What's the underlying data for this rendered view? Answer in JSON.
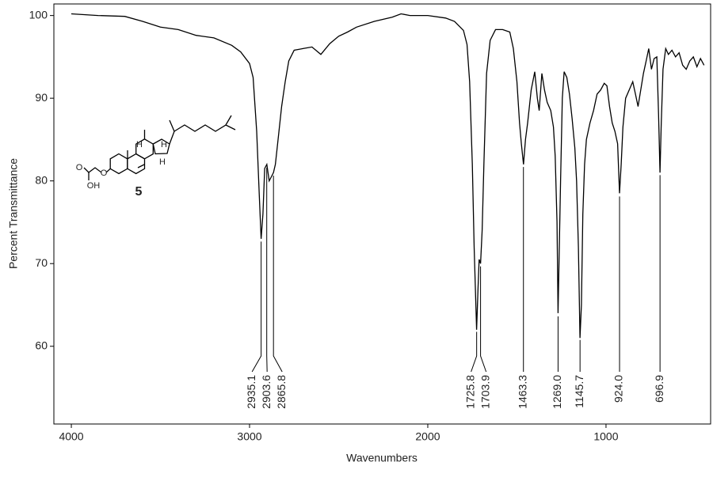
{
  "chart_data": {
    "type": "line",
    "x_label": "Wavenumbers",
    "y_label": "Percent Transmittance",
    "color": "#000000",
    "xlim": [
      4098,
      413
    ],
    "ylim": [
      50.6,
      101.4
    ],
    "xticks": [
      4000,
      3000,
      2000,
      1000
    ],
    "yticks": [
      60,
      70,
      80,
      90,
      100
    ],
    "x": [
      4000,
      3850,
      3700,
      3600,
      3500,
      3400,
      3300,
      3200,
      3100,
      3050,
      3000,
      2980,
      2960,
      2945,
      2935,
      2925,
      2915,
      2903,
      2890,
      2878,
      2866,
      2855,
      2840,
      2820,
      2800,
      2780,
      2750,
      2700,
      2650,
      2600,
      2550,
      2500,
      2450,
      2400,
      2300,
      2200,
      2150,
      2100,
      2000,
      1900,
      1850,
      1800,
      1780,
      1765,
      1750,
      1740,
      1726,
      1718,
      1712,
      1704,
      1695,
      1685,
      1670,
      1650,
      1620,
      1580,
      1540,
      1520,
      1500,
      1485,
      1475,
      1463,
      1452,
      1440,
      1420,
      1400,
      1385,
      1375,
      1360,
      1345,
      1330,
      1310,
      1295,
      1285,
      1275,
      1269,
      1262,
      1255,
      1245,
      1235,
      1220,
      1205,
      1190,
      1175,
      1165,
      1155,
      1146,
      1138,
      1130,
      1120,
      1110,
      1090,
      1070,
      1050,
      1030,
      1010,
      995,
      980,
      965,
      950,
      935,
      924,
      915,
      905,
      890,
      870,
      850,
      835,
      820,
      805,
      790,
      775,
      760,
      745,
      730,
      715,
      705,
      697,
      690,
      680,
      665,
      650,
      630,
      610,
      590,
      570,
      550,
      530,
      510,
      490,
      470,
      450
    ],
    "values": [
      100.2,
      100.0,
      99.9,
      99.3,
      98.6,
      98.3,
      97.6,
      97.3,
      96.4,
      95.6,
      94.2,
      92.5,
      86.0,
      78.0,
      73.0,
      76.0,
      81.5,
      82.0,
      80.0,
      80.5,
      81.0,
      82.0,
      85.0,
      89.0,
      92.0,
      94.5,
      95.8,
      96.0,
      96.2,
      95.3,
      96.6,
      97.5,
      98.0,
      98.6,
      99.3,
      99.8,
      100.2,
      100.0,
      100.0,
      99.7,
      99.3,
      98.2,
      96.5,
      92.0,
      82.0,
      72.0,
      62.0,
      67.0,
      70.5,
      70.0,
      74.0,
      82.0,
      93.0,
      97.0,
      98.3,
      98.3,
      98.0,
      96.0,
      92.0,
      87.0,
      84.5,
      82.0,
      85.0,
      87.0,
      91.0,
      93.2,
      90.0,
      88.5,
      93.0,
      91.0,
      89.5,
      88.5,
      86.5,
      83.0,
      75.0,
      64.0,
      72.0,
      80.0,
      90.0,
      93.2,
      92.5,
      90.5,
      87.5,
      84.0,
      80.0,
      72.0,
      61.0,
      65.0,
      76.0,
      82.0,
      85.0,
      87.0,
      88.5,
      90.5,
      91.0,
      91.8,
      91.5,
      89.0,
      87.0,
      86.0,
      84.5,
      78.5,
      82.0,
      86.5,
      90.0,
      91.0,
      92.0,
      90.5,
      89.0,
      91.0,
      93.0,
      94.5,
      96.0,
      93.5,
      94.8,
      95.0,
      88.0,
      81.0,
      87.0,
      93.5,
      96.0,
      95.3,
      95.8,
      95.0,
      95.5,
      94.0,
      93.5,
      94.5,
      95.0,
      93.8,
      94.8,
      94.0
    ],
    "peaks": [
      2935.1,
      2903.6,
      2865.8,
      1725.8,
      1703.9,
      1463.3,
      {
        "value": 1269,
        "label": "1269.0"
      },
      1145.7,
      {
        "value": 924,
        "label": "924.0"
      },
      696.9
    ],
    "structure": {
      "compound": "5",
      "atoms": [
        "O",
        "OH",
        "O",
        "H",
        "H",
        "H"
      ]
    }
  }
}
